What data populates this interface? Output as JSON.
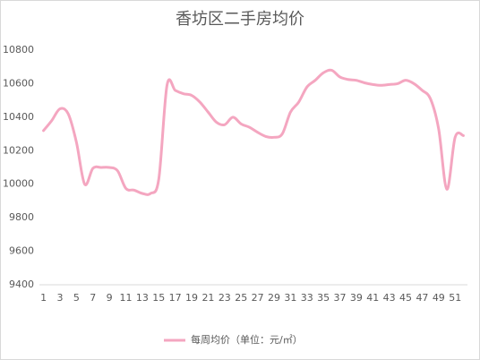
{
  "chart_data": {
    "type": "line",
    "title": "香坊区二手房均价",
    "categories": [
      1,
      null,
      3,
      null,
      5,
      null,
      7,
      null,
      9,
      null,
      11,
      null,
      13,
      null,
      15,
      null,
      17,
      null,
      19,
      null,
      21,
      null,
      23,
      null,
      25,
      null,
      27,
      null,
      29,
      null,
      31,
      null,
      33,
      null,
      35,
      null,
      37,
      null,
      39,
      null,
      41,
      null,
      43,
      null,
      45,
      null,
      47,
      null,
      49,
      null,
      51,
      null
    ],
    "series": [
      {
        "name": "每周均价（单位：元/㎡）",
        "color": "#f4a6c0",
        "values": [
          10320,
          10380,
          10450,
          10420,
          10250,
          10000,
          10095,
          10100,
          10100,
          10080,
          9975,
          9965,
          9945,
          9945,
          10030,
          10590,
          10560,
          10540,
          10530,
          10490,
          10430,
          10370,
          10355,
          10400,
          10360,
          10340,
          10310,
          10285,
          10280,
          10300,
          10430,
          10490,
          10580,
          10620,
          10665,
          10680,
          10640,
          10625,
          10620,
          10605,
          10595,
          10590,
          10595,
          10600,
          10620,
          10600,
          10560,
          10510,
          10330,
          9970,
          10280,
          10290
        ]
      }
    ],
    "ylim": [
      9400,
      10800
    ],
    "yticks": [
      9400,
      9600,
      9800,
      10000,
      10200,
      10400,
      10600,
      10800
    ],
    "grid": false,
    "legend": "bottom"
  }
}
